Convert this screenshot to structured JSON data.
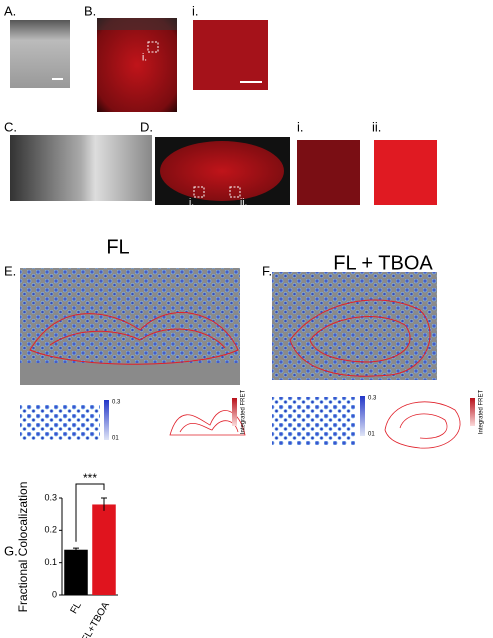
{
  "panels": {
    "a": "A.",
    "b": "B.",
    "b_inset": "i.",
    "b_i": "i.",
    "c": "C.",
    "d": "D.",
    "d_inset_1": "i.",
    "d_inset_2": "ii.",
    "d_i": "i.",
    "d_ii": "ii.",
    "e": "E.",
    "f": "F.",
    "g": "G."
  },
  "headings": {
    "e": "FL",
    "f": "FL + TBOA"
  },
  "colorbars": {
    "e_blue": {
      "max": "0.3",
      "min": "01"
    },
    "e_red": {
      "label": "Integrated FRET"
    },
    "f_blue": {
      "max": "0.3",
      "min": "01"
    },
    "f_red": {
      "label": "Integrated FRET"
    }
  },
  "chart_data": {
    "type": "bar",
    "categories": [
      "FL",
      "FL+TBOA"
    ],
    "values": [
      0.14,
      0.28
    ],
    "errors": [
      0.005,
      0.02
    ],
    "colors": [
      "#000000",
      "#e0141e"
    ],
    "ylabel": "Fractional Colocalization",
    "ylim": [
      0,
      0.3
    ],
    "yticks": [
      0,
      0.1,
      0.2,
      0.3
    ],
    "annotation": "***"
  }
}
